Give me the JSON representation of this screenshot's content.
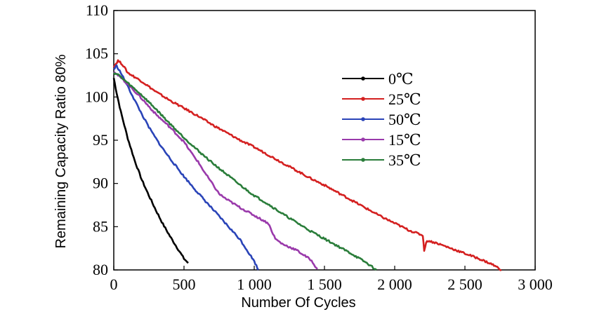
{
  "chart_data": {
    "type": "line",
    "title": "",
    "xlabel": "Number Of Cycles",
    "ylabel": "Remaining Capacity Ratio 80%",
    "xlim": [
      0,
      3000
    ],
    "ylim": [
      80,
      110
    ],
    "xticks": [
      0,
      500,
      1000,
      1500,
      2000,
      2500,
      3000
    ],
    "xtick_labels": [
      "0",
      "500",
      "1 000",
      "1 500",
      "2 000",
      "2 500",
      "3 000"
    ],
    "yticks": [
      80,
      85,
      90,
      95,
      100,
      105,
      110
    ],
    "ytick_labels": [
      "80",
      "85",
      "90",
      "95",
      "100",
      "105",
      "110"
    ],
    "grid": false,
    "legend_position": "upper-right-inside",
    "series": [
      {
        "name": "0℃",
        "color": "#000000",
        "x": [
          0,
          20,
          50,
          100,
          150,
          200,
          250,
          300,
          350,
          400,
          450,
          500,
          530
        ],
        "y": [
          102.2,
          100.5,
          98.3,
          95.2,
          92.6,
          90.4,
          88.6,
          86.9,
          85.3,
          83.9,
          82.6,
          81.3,
          80.8
        ]
      },
      {
        "name": "25℃",
        "color": "#d42020",
        "x": [
          0,
          30,
          60,
          100,
          200,
          300,
          400,
          500,
          600,
          700,
          800,
          900,
          1000,
          1100,
          1200,
          1300,
          1400,
          1500,
          1600,
          1700,
          1800,
          1900,
          2000,
          2100,
          2200,
          2210,
          2230,
          2300,
          2400,
          2500,
          2600,
          2700,
          2760
        ],
        "y": [
          103.5,
          104.2,
          103.8,
          102.8,
          101.8,
          100.6,
          99.6,
          98.7,
          97.8,
          96.8,
          95.9,
          95.0,
          94.2,
          93.3,
          92.4,
          91.5,
          90.6,
          89.8,
          88.9,
          88.0,
          87.1,
          86.2,
          85.4,
          84.6,
          84.0,
          82.3,
          83.4,
          83.1,
          82.5,
          81.9,
          81.3,
          80.6,
          80.0
        ]
      },
      {
        "name": "50℃",
        "color": "#2a44b8",
        "x": [
          0,
          20,
          50,
          100,
          150,
          200,
          250,
          300,
          350,
          400,
          500,
          600,
          700,
          800,
          900,
          1000,
          1030
        ],
        "y": [
          103.2,
          103.6,
          102.8,
          101.2,
          99.6,
          98.0,
          96.5,
          95.2,
          94.0,
          92.9,
          90.8,
          88.9,
          87.1,
          85.3,
          83.5,
          81.0,
          80.0
        ]
      },
      {
        "name": "15℃",
        "color": "#9a3aab",
        "x": [
          0,
          30,
          100,
          200,
          300,
          400,
          500,
          550,
          600,
          650,
          700,
          750,
          800,
          900,
          1000,
          1100,
          1150,
          1200,
          1300,
          1400,
          1450
        ],
        "y": [
          103.0,
          102.5,
          101.5,
          99.8,
          98.0,
          96.5,
          94.8,
          93.6,
          92.5,
          91.2,
          90.0,
          88.8,
          88.2,
          87.2,
          86.3,
          85.4,
          83.6,
          83.0,
          82.3,
          81.2,
          80.1
        ]
      },
      {
        "name": "35℃",
        "color": "#2a7d3a",
        "x": [
          0,
          30,
          100,
          200,
          300,
          400,
          500,
          600,
          700,
          800,
          900,
          1000,
          1100,
          1200,
          1300,
          1400,
          1500,
          1600,
          1700,
          1800,
          1870
        ],
        "y": [
          102.8,
          102.6,
          101.6,
          100.2,
          98.6,
          96.9,
          95.3,
          93.8,
          92.4,
          91.1,
          89.8,
          88.6,
          87.6,
          86.5,
          85.5,
          84.5,
          83.6,
          82.7,
          81.8,
          80.8,
          80.0
        ]
      }
    ]
  }
}
